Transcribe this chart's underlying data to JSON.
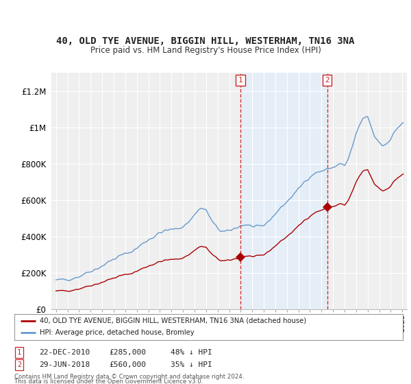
{
  "title": "40, OLD TYE AVENUE, BIGGIN HILL, WESTERHAM, TN16 3NA",
  "subtitle": "Price paid vs. HM Land Registry's House Price Index (HPI)",
  "ylim": [
    0,
    1300000
  ],
  "yticks": [
    0,
    200000,
    400000,
    600000,
    800000,
    1000000,
    1200000
  ],
  "ytick_labels": [
    "£0",
    "£200K",
    "£400K",
    "£600K",
    "£800K",
    "£1M",
    "£1.2M"
  ],
  "background_color": "#ffffff",
  "plot_bg_color": "#efefef",
  "shaded_region_color": "#ddeeff",
  "purchase1_date": 2010.97,
  "purchase1_price": 285000,
  "purchase2_date": 2018.49,
  "purchase2_price": 560000,
  "legend_entry1": "40, OLD TYE AVENUE, BIGGIN HILL, WESTERHAM, TN16 3NA (detached house)",
  "legend_entry2": "HPI: Average price, detached house, Bromley",
  "annotation1": [
    "1",
    "22-DEC-2010",
    "£285,000",
    "48% ↓ HPI"
  ],
  "annotation2": [
    "2",
    "29-JUN-2018",
    "£560,000",
    "35% ↓ HPI"
  ],
  "footnote1": "Contains HM Land Registry data © Crown copyright and database right 2024.",
  "footnote2": "This data is licensed under the Open Government Licence v3.0.",
  "line_red_color": "#aa0000",
  "line_blue_color": "#6699cc",
  "dashed_line_color": "#cc2222"
}
